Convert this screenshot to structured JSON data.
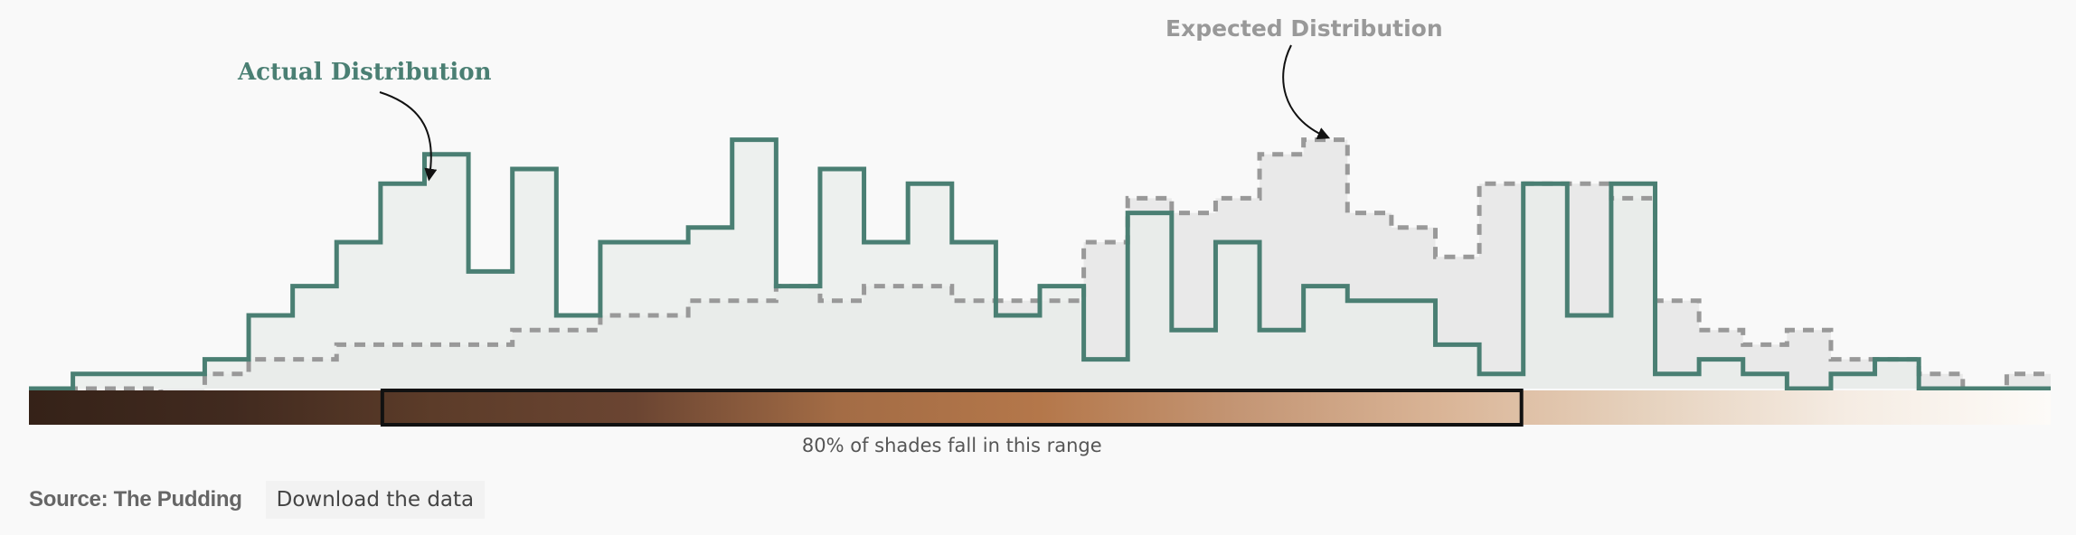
{
  "chart_data": {
    "type": "area",
    "shape": "step",
    "x_range": [
      0,
      45
    ],
    "y_range": [
      0,
      17
    ],
    "series": [
      {
        "name": "Actual Distribution",
        "color": "#4a7f73",
        "fill": "#e8ecea",
        "line_style": "solid",
        "values": [
          0,
          1,
          1,
          1,
          2,
          5,
          7,
          10,
          14,
          16,
          8,
          15,
          5,
          10,
          10,
          11,
          17,
          7,
          15,
          10,
          14,
          10,
          5,
          7,
          2,
          12,
          4,
          10,
          4,
          7,
          6,
          6,
          3,
          1,
          14,
          5,
          14,
          1,
          2,
          1,
          0,
          1,
          2,
          0,
          0,
          0
        ]
      },
      {
        "name": "Expected Distribution",
        "color": "#999999",
        "fill": "#e9e9e9",
        "line_style": "dashed",
        "values": [
          0,
          0,
          0,
          -1,
          1,
          2,
          2,
          3,
          3,
          3,
          3,
          4,
          4,
          5,
          5,
          6,
          6,
          7,
          6,
          7,
          7,
          6,
          6,
          6,
          10,
          13,
          12,
          13,
          16,
          17,
          12,
          11,
          9,
          14,
          14,
          14,
          13,
          6,
          4,
          3,
          4,
          2,
          2,
          1,
          0,
          1
        ]
      }
    ],
    "annotations": [
      {
        "text": "Actual Distribution",
        "series": "Actual Distribution"
      },
      {
        "text": "Expected Distribution",
        "series": "Expected Distribution"
      }
    ],
    "skin_tone_bar": {
      "colors": [
        "#352218",
        "#412a1f",
        "#5c3c29",
        "#6b4532",
        "#a36c45",
        "#b4774a",
        "#c49675",
        "#dab597",
        "#e6d2be",
        "#f5ece3",
        "#fdfbf8"
      ],
      "highlight_range": [
        8,
        34
      ],
      "highlight_label": "80% of shades fall in this range"
    }
  },
  "footer": {
    "source": "Source: The Pudding",
    "download_label": "Download the data"
  }
}
